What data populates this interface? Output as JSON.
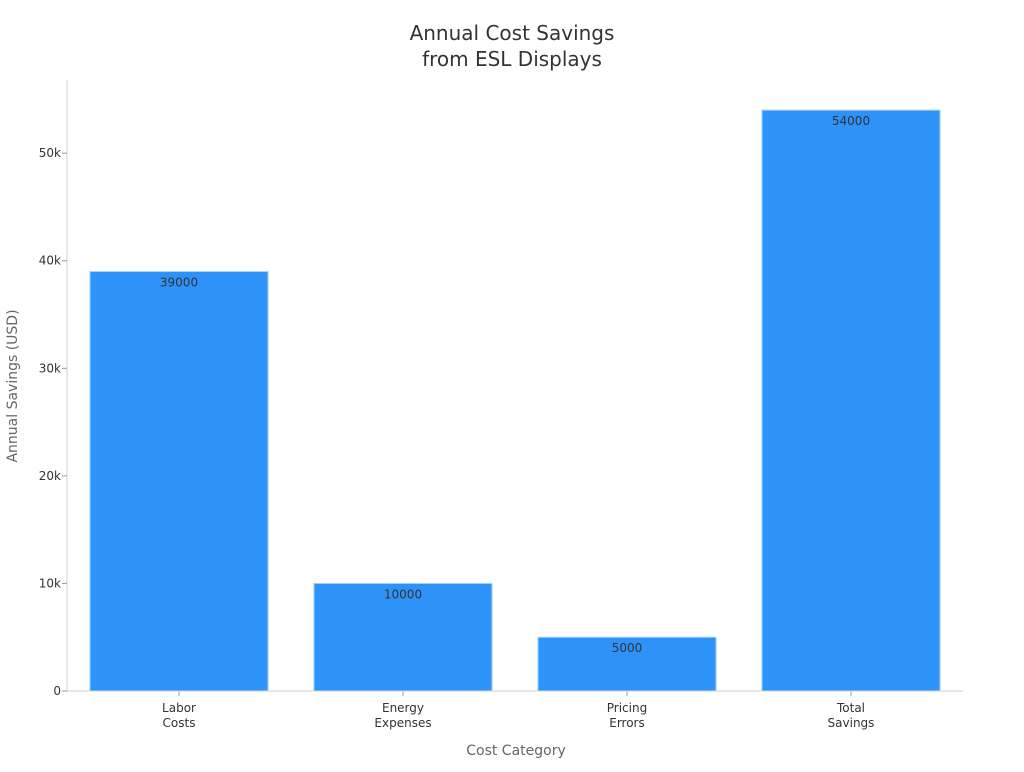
{
  "chart_data": {
    "type": "bar",
    "title": [
      "Annual Cost Savings",
      "from ESL Displays"
    ],
    "xlabel": "Cost Category",
    "ylabel": "Annual Savings (USD)",
    "categories": [
      [
        "Labor",
        "Costs"
      ],
      [
        "Energy",
        "Expenses"
      ],
      [
        "Pricing",
        "Errors"
      ],
      [
        "Total",
        "Savings"
      ]
    ],
    "values": [
      39000,
      10000,
      5000,
      54000
    ],
    "data_labels": [
      "39000",
      "10000",
      "5000",
      "54000"
    ],
    "ylim": [
      0,
      56800
    ],
    "yticks": [
      0,
      10000,
      20000,
      30000,
      40000,
      50000
    ],
    "ytick_labels": [
      "0",
      "10k",
      "20k",
      "30k",
      "40k",
      "50k"
    ],
    "grid": false,
    "colors": {
      "bar": "#2e93f8",
      "bar_edge": "#a9d3fb",
      "axis": "#d0d0d0",
      "text": "#333333",
      "label": "#666666"
    }
  }
}
